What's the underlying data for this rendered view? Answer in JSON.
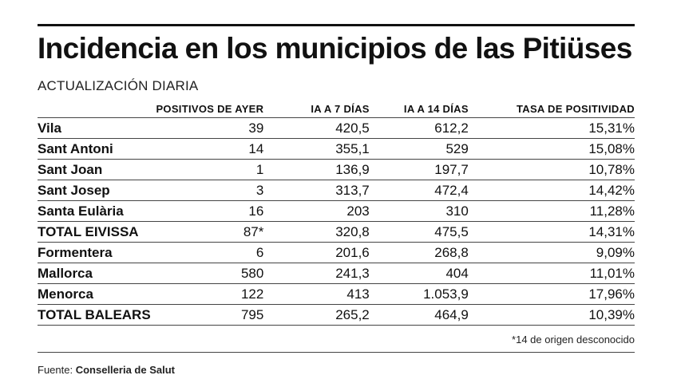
{
  "title": "Incidencia en los municipios de las Pitiüses",
  "subtitle": "ACTUALIZACIÓN DIARIA",
  "columns": [
    "POSITIVOS DE AYER",
    "IA A 7 DÍAS",
    "IA A 14 DÍAS",
    "TASA DE POSITIVIDAD"
  ],
  "rows": [
    {
      "name": "Vila",
      "positivos": "39",
      "ia7": "420,5",
      "ia14": "612,2",
      "tasa": "15,31%"
    },
    {
      "name": "Sant Antoni",
      "positivos": "14",
      "ia7": "355,1",
      "ia14": "529",
      "tasa": "15,08%"
    },
    {
      "name": "Sant Joan",
      "positivos": "1",
      "ia7": "136,9",
      "ia14": "197,7",
      "tasa": "10,78%"
    },
    {
      "name": "Sant Josep",
      "positivos": "3",
      "ia7": "313,7",
      "ia14": "472,4",
      "tasa": "14,42%"
    },
    {
      "name": "Santa Eulària",
      "positivos": "16",
      "ia7": "203",
      "ia14": "310",
      "tasa": "11,28%"
    },
    {
      "name": "TOTAL EIVISSA",
      "positivos": "87*",
      "ia7": "320,8",
      "ia14": "475,5",
      "tasa": "14,31%"
    },
    {
      "name": "Formentera",
      "positivos": "6",
      "ia7": "201,6",
      "ia14": "268,8",
      "tasa": "9,09%"
    },
    {
      "name": "Mallorca",
      "positivos": "580",
      "ia7": "241,3",
      "ia14": "404",
      "tasa": "11,01%"
    },
    {
      "name": "Menorca",
      "positivos": "122",
      "ia7": "413",
      "ia14": "1.053,9",
      "tasa": "17,96%"
    },
    {
      "name": "TOTAL BALEARS",
      "positivos": "795",
      "ia7": "265,2",
      "ia14": "464,9",
      "tasa": "10,39%"
    }
  ],
  "footnote": "*14 de origen desconocido",
  "source_label": "Fuente:",
  "source_value": "Conselleria de Salut"
}
